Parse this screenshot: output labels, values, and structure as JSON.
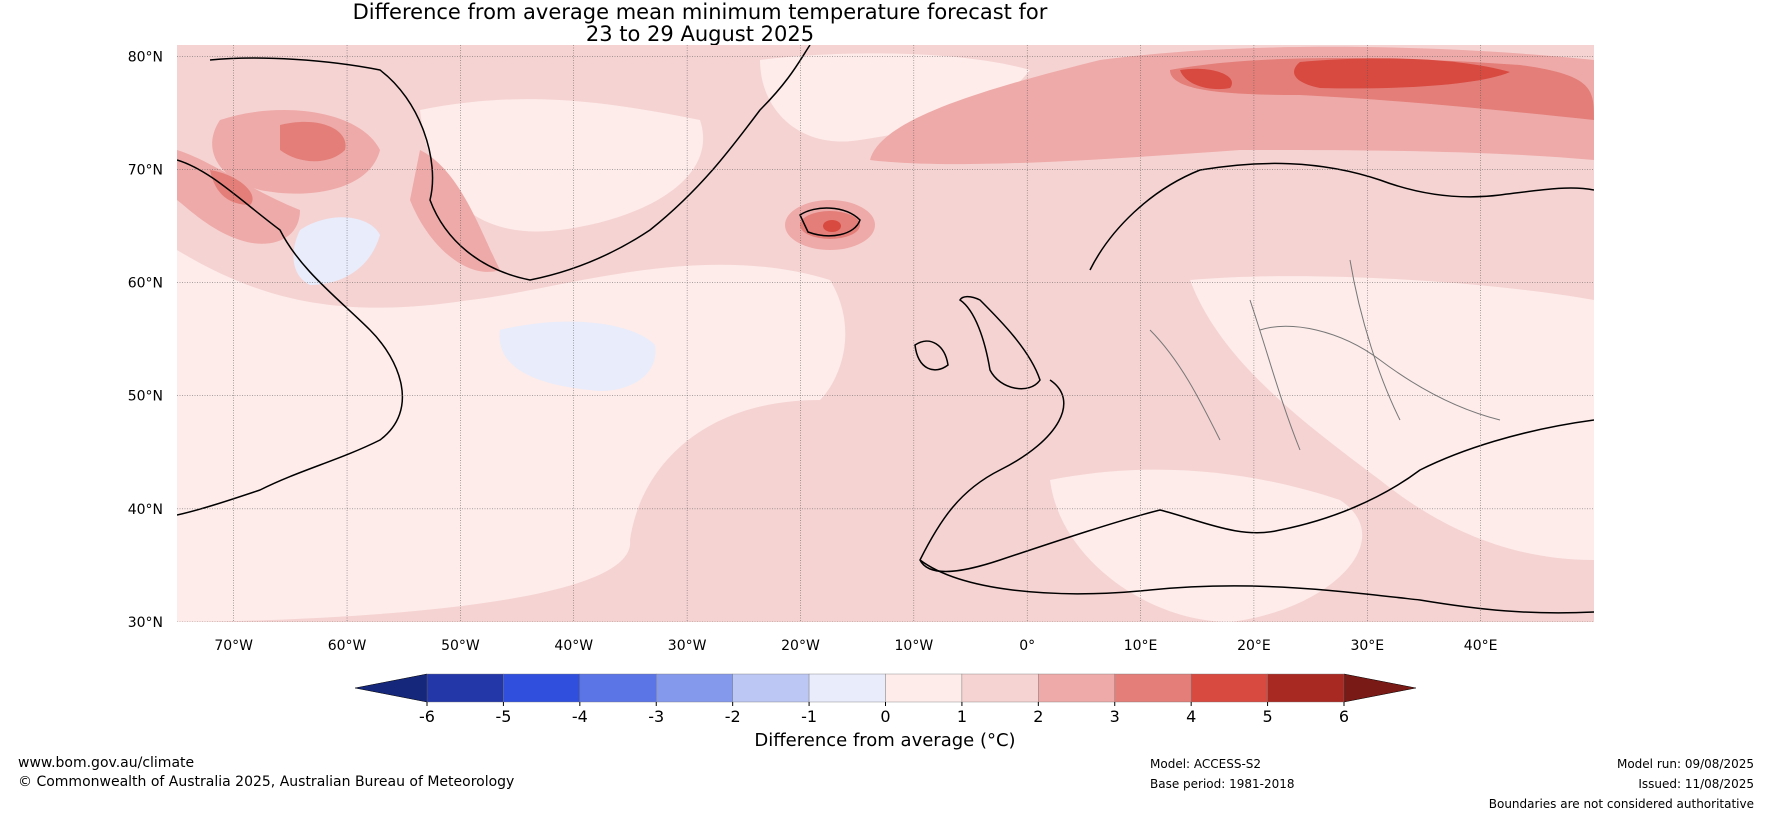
{
  "title": {
    "line1": "Difference from average mean minimum temperature forecast for",
    "line2": "23 to 29 August 2025"
  },
  "map": {
    "lat_labels": [
      "80°N",
      "70°N",
      "60°N",
      "50°N",
      "40°N",
      "30°N"
    ],
    "lon_labels": [
      "70°W",
      "60°W",
      "50°W",
      "40°W",
      "30°W",
      "20°W",
      "10°W",
      "0°",
      "10°E",
      "20°E",
      "30°E",
      "40°E"
    ]
  },
  "colorbar": {
    "ticks": [
      "-6",
      "-5",
      "-4",
      "-3",
      "-2",
      "-1",
      "0",
      "1",
      "2",
      "3",
      "4",
      "5",
      "6"
    ],
    "colors": [
      "#2437a8",
      "#2f4fdc",
      "#5b74e6",
      "#8599ec",
      "#bcc7f4",
      "#e8ecfb",
      "#fdecea",
      "#f5d3d2",
      "#eeaaa8",
      "#e37e79",
      "#d84a40",
      "#a82822"
    ],
    "under_color": "#15277a",
    "over_color": "#7a1a16",
    "label": "Difference from average (°C)"
  },
  "footer": {
    "website": "www.bom.gov.au/climate",
    "copyright": "© Commonwealth of Australia 2025, Australian Bureau of Meteorology",
    "model": "Model: ACCESS-S2",
    "base_period": "Base period: 1981-2018",
    "model_run": "Model run: 09/08/2025",
    "issued": "Issued: 11/08/2025",
    "disclaimer": "Boundaries are not considered authoritative"
  }
}
